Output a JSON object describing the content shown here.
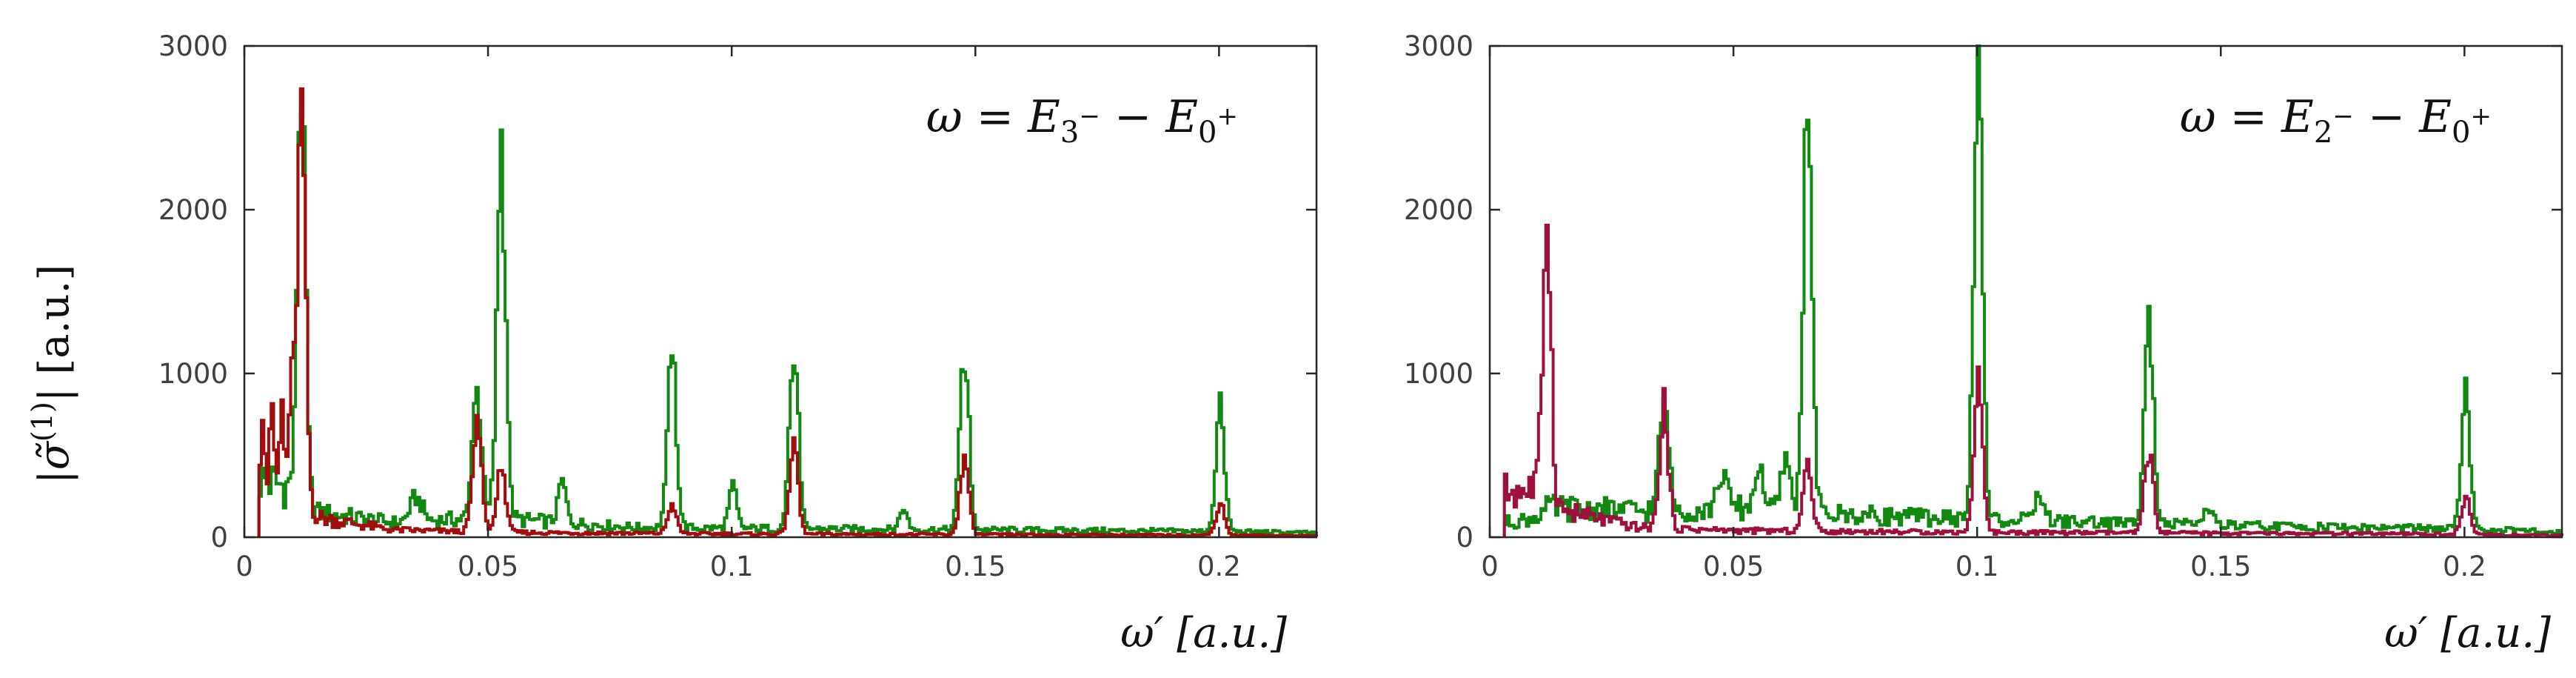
{
  "figure": {
    "ylabel_parts": {
      "abs": "|",
      "sigma": "σ̃",
      "order": "(1)",
      "unit": "| [a.u.]"
    }
  },
  "colors": {
    "green": "#128a12",
    "red": "#a30d0d",
    "crimson": "#a0103c"
  },
  "chart_data": [
    {
      "type": "line",
      "title": "",
      "xlabel": "ω′ [a.u.]",
      "ylabel": "|σ̃(1)| [a.u.]",
      "xlim": [
        0,
        0.22
      ],
      "ylim": [
        0,
        3000
      ],
      "xticks": [
        0,
        0.05,
        0.1,
        0.15,
        0.2
      ],
      "xtick_labels": [
        "0",
        "0.05",
        "0.1",
        "0.15",
        "0.2"
      ],
      "yticks": [
        0,
        1000,
        2000,
        3000
      ],
      "ytick_labels": [
        "0",
        "1000",
        "2000",
        "3000"
      ],
      "annotation_parts": {
        "omega": "ω",
        "eq": " = ",
        "e1": "E",
        "s1": "3",
        "sup1": "−",
        "minus": " − ",
        "e2": "E",
        "s2": "0",
        "sup2": "+"
      },
      "annotation_position": "top-right",
      "series": [
        {
          "name": "green",
          "color": "#128a12",
          "baseline": [
            [
              0.003,
              350
            ],
            [
              0.01,
              300
            ],
            [
              0.015,
              150
            ],
            [
              0.03,
              90
            ],
            [
              0.05,
              120
            ],
            [
              0.08,
              60
            ],
            [
              0.1,
              55
            ],
            [
              0.15,
              45
            ],
            [
              0.2,
              35
            ],
            [
              0.22,
              25
            ]
          ],
          "peaks": [
            [
              0.0115,
              2550,
              0.0008
            ],
            [
              0.035,
              150,
              0.0012
            ],
            [
              0.0475,
              820,
              0.0009
            ],
            [
              0.0525,
              2220,
              0.0009
            ],
            [
              0.065,
              250,
              0.0008
            ],
            [
              0.0875,
              1050,
              0.0009
            ],
            [
              0.1,
              260,
              0.0008
            ],
            [
              0.1125,
              1170,
              0.0009
            ],
            [
              0.135,
              120,
              0.0008
            ],
            [
              0.1475,
              1120,
              0.0009
            ],
            [
              0.2,
              730,
              0.0009
            ]
          ]
        },
        {
          "name": "red",
          "color": "#a30d0d",
          "baseline": [
            [
              0.003,
              350
            ],
            [
              0.01,
              300
            ],
            [
              0.015,
              120
            ],
            [
              0.03,
              45
            ],
            [
              0.05,
              30
            ],
            [
              0.1,
              20
            ],
            [
              0.2,
              12
            ],
            [
              0.22,
              8
            ]
          ],
          "peaks": [
            [
              0.0035,
              520,
              0.0004
            ],
            [
              0.0055,
              420,
              0.0004
            ],
            [
              0.0075,
              560,
              0.0004
            ],
            [
              0.0095,
              740,
              0.0004
            ],
            [
              0.0115,
              2600,
              0.0008
            ],
            [
              0.0475,
              700,
              0.0009
            ],
            [
              0.0525,
              380,
              0.0009
            ],
            [
              0.0875,
              180,
              0.0009
            ],
            [
              0.1125,
              520,
              0.0009
            ],
            [
              0.1475,
              450,
              0.0009
            ],
            [
              0.2,
              190,
              0.0009
            ]
          ]
        }
      ]
    },
    {
      "type": "line",
      "title": "",
      "xlabel": "ω′ [a.u.]",
      "ylabel": "",
      "xlim": [
        0,
        0.22
      ],
      "ylim": [
        0,
        3000
      ],
      "xticks": [
        0,
        0.05,
        0.1,
        0.15,
        0.2
      ],
      "xtick_labels": [
        "0",
        "0.05",
        "0.1",
        "0.15",
        "0.2"
      ],
      "yticks": [
        0,
        1000,
        2000,
        3000
      ],
      "ytick_labels": [
        "0",
        "1000",
        "2000",
        "3000"
      ],
      "annotation_parts": {
        "omega": "ω",
        "eq": " = ",
        "e1": "E",
        "s1": "2",
        "sup1": "−",
        "minus": " − ",
        "e2": "E",
        "s2": "0",
        "sup2": "+"
      },
      "annotation_position": "top-right",
      "series": [
        {
          "name": "green",
          "color": "#128a12",
          "baseline": [
            [
              0.003,
              90
            ],
            [
              0.008,
              110
            ],
            [
              0.012,
              180
            ],
            [
              0.03,
              160
            ],
            [
              0.05,
              180
            ],
            [
              0.07,
              140
            ],
            [
              0.1,
              110
            ],
            [
              0.15,
              70
            ],
            [
              0.2,
              50
            ],
            [
              0.22,
              30
            ]
          ],
          "peaks": [
            [
              0.0355,
              720,
              0.0009
            ],
            [
              0.0475,
              220,
              0.0009
            ],
            [
              0.055,
              260,
              0.0009
            ],
            [
              0.0605,
              320,
              0.0009
            ],
            [
              0.065,
              2450,
              0.0009
            ],
            [
              0.1,
              2750,
              0.0009
            ],
            [
              0.1125,
              180,
              0.0009
            ],
            [
              0.135,
              1250,
              0.0009
            ],
            [
              0.1475,
              120,
              0.0009
            ],
            [
              0.2,
              790,
              0.0009
            ]
          ]
        },
        {
          "name": "crimson",
          "color": "#a0103c",
          "baseline": [
            [
              0.003,
              280
            ],
            [
              0.01,
              300
            ],
            [
              0.015,
              160
            ],
            [
              0.03,
              60
            ],
            [
              0.05,
              40
            ],
            [
              0.1,
              30
            ],
            [
              0.2,
              18
            ],
            [
              0.22,
              10
            ]
          ],
          "peaks": [
            [
              0.0115,
              1800,
              0.0008
            ],
            [
              0.0355,
              740,
              0.0009
            ],
            [
              0.065,
              420,
              0.0009
            ],
            [
              0.1,
              920,
              0.0009
            ],
            [
              0.135,
              520,
              0.0009
            ],
            [
              0.2,
              220,
              0.0009
            ]
          ]
        }
      ]
    }
  ]
}
